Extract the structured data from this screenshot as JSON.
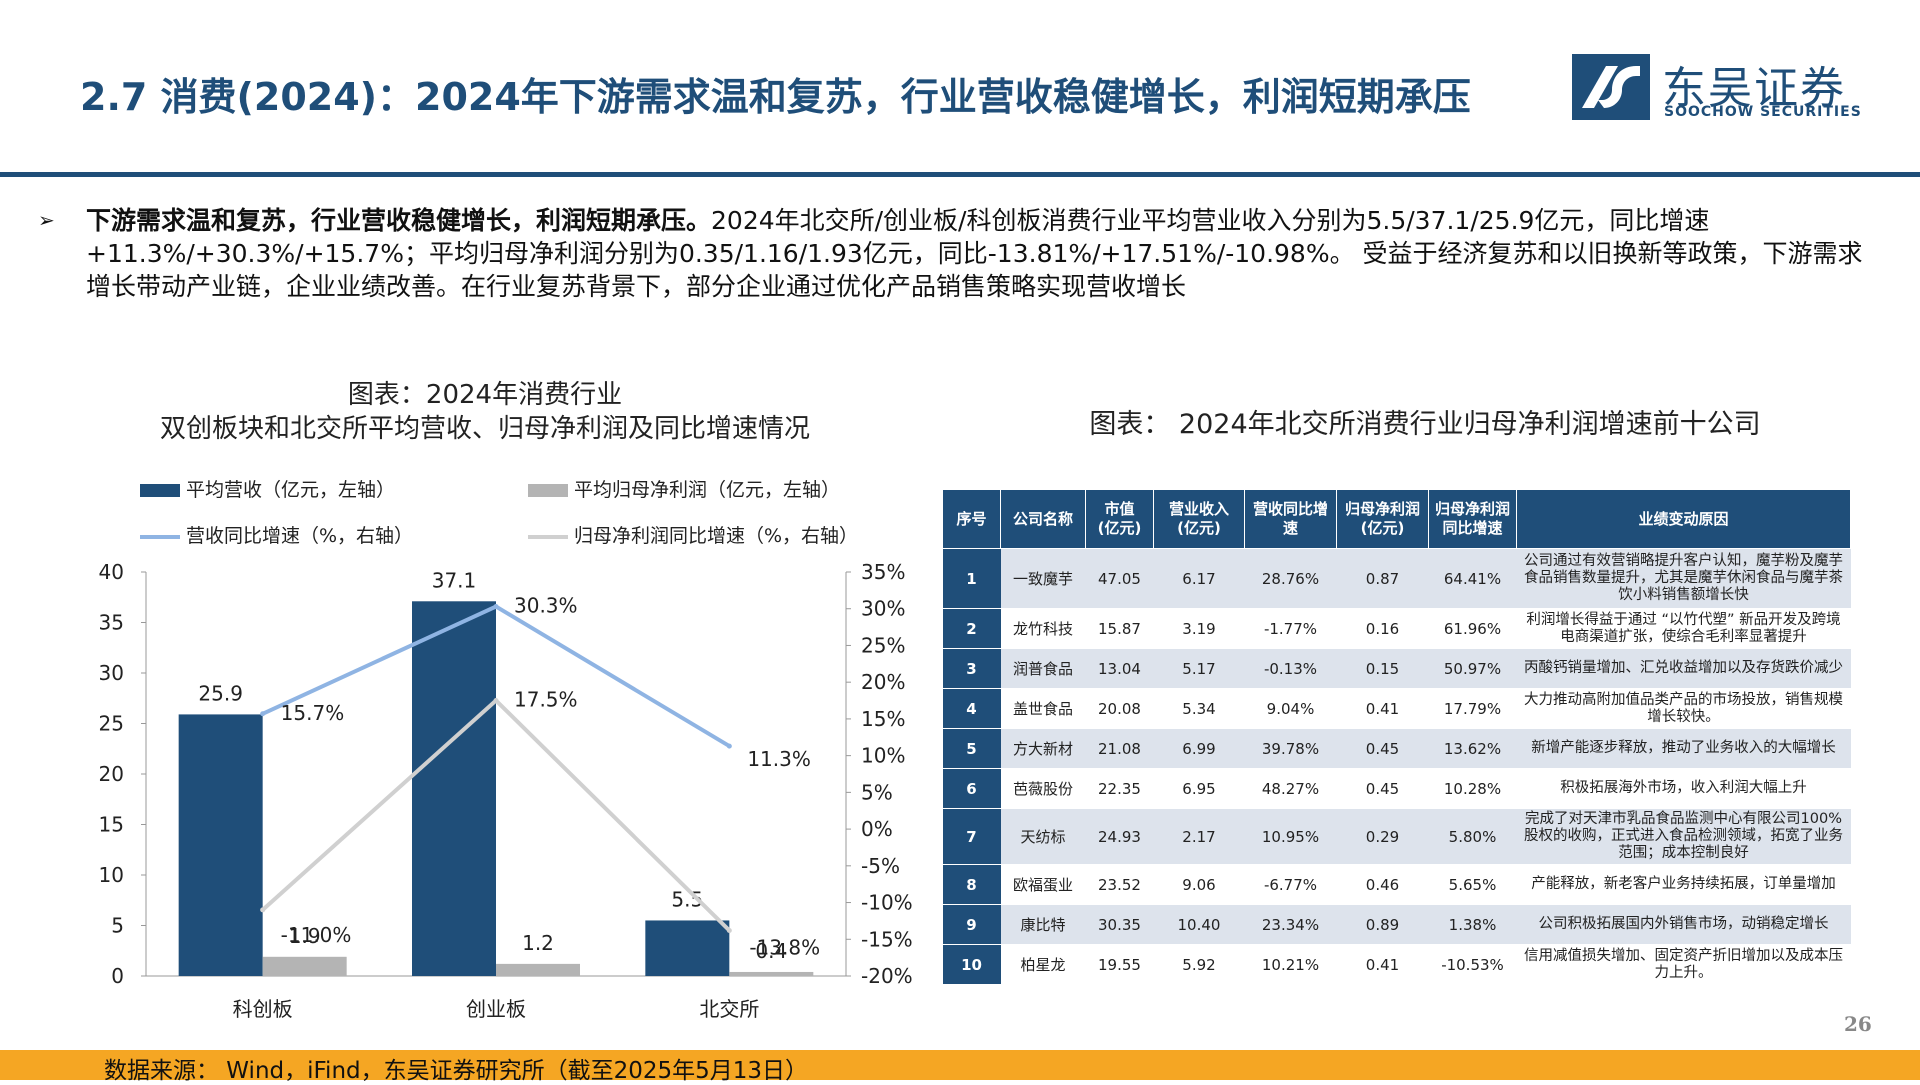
{
  "header": {
    "title": "2.7 消费(2024)：2024年下游需求温和复苏，行业营收稳健增长，利润短期承压",
    "logo_cn": "东吴证券",
    "logo_en": "SOOCHOW SECURITIES"
  },
  "bullet": {
    "mark": "➢",
    "bold": "下游需求温和复苏，行业营收稳健增长，利润短期承压。",
    "text": "2024年北交所/创业板/科创板消费行业平均营业收入分别为5.5/37.1/25.9亿元，同比增速+11.3%/+30.3%/+15.7%；平均归母净利润分别为0.35/1.16/1.93亿元，同比-13.81%/+17.51%/-10.98%。 受益于经济复苏和以旧换新等政策，下游需求增长带动产业链，企业业绩改善。在行业复苏背景下，部分企业通过优化产品销售策略实现营收增长"
  },
  "chart_title_line1": "图表：2024年消费行业",
  "chart_title_line2": "双创板块和北交所平均营收、归母净利润及同比增速情况",
  "table_title": "图表：   2024年北交所消费行业归母净利润增速前十公司",
  "colors": {
    "navy": "#1f4e79",
    "grey_bar": "#b4b4b4",
    "light_blue_line": "#8fb4e3",
    "grey_line": "#d0d0d0",
    "orange": "#f5a623"
  },
  "chart_data": {
    "type": "bar",
    "categories": [
      "科创板",
      "创业板",
      "北交所"
    ],
    "series": [
      {
        "name": "平均营收（亿元，左轴）",
        "kind": "bar",
        "axis": "left",
        "values": [
          25.9,
          37.1,
          5.5
        ],
        "labels": [
          "25.9",
          "37.1",
          "5.5"
        ]
      },
      {
        "name": "平均归母净利润（亿元，左轴）",
        "kind": "bar",
        "axis": "left",
        "values": [
          1.9,
          1.2,
          0.4
        ],
        "labels": [
          "1.9",
          "1.2",
          "0.4"
        ]
      },
      {
        "name": "营收同比增速（%，右轴）",
        "kind": "line",
        "axis": "right",
        "values": [
          15.7,
          30.3,
          11.3
        ],
        "labels": [
          "15.7%",
          "30.3%",
          "11.3%"
        ]
      },
      {
        "name": "归母净利润同比增速（%，右轴）",
        "kind": "line",
        "axis": "right",
        "values": [
          -11.0,
          17.5,
          -13.8
        ],
        "labels": [
          "-11.0%",
          "17.5%",
          "-13.8%"
        ]
      }
    ],
    "ylim_left": [
      0,
      40
    ],
    "ylim_right": [
      -20,
      35
    ],
    "left_ticks": [
      "0",
      "5",
      "10",
      "15",
      "20",
      "25",
      "30",
      "35",
      "40"
    ],
    "right_ticks": [
      "-20%",
      "-15%",
      "-10%",
      "-5%",
      "0%",
      "5%",
      "10%",
      "15%",
      "20%",
      "25%",
      "30%",
      "35%"
    ],
    "grid": false,
    "legend_position": "top"
  },
  "table": {
    "headers": [
      "序号",
      "公司名称",
      "市值\n(亿元)",
      "营业收入\n(亿元)",
      "营收同比增\n速",
      "归母净利润\n(亿元)",
      "归母净利润\n同比增速",
      "业绩变动原因"
    ],
    "rows": [
      [
        "1",
        "一致魔芋",
        "47.05",
        "6.17",
        "28.76%",
        "0.87",
        "64.41%",
        "公司通过有效营销略提升客户认知，魔芋粉及魔芋食品销售数量提升，尤其是魔芋休闲食品与魔芋茶饮小料销售额增长快"
      ],
      [
        "2",
        "龙竹科技",
        "15.87",
        "3.19",
        "-1.77%",
        "0.16",
        "61.96%",
        "利润增长得益于通过 “以竹代塑” 新品开发及跨境电商渠道扩张，使综合毛利率显著提升"
      ],
      [
        "3",
        "润普食品",
        "13.04",
        "5.17",
        "-0.13%",
        "0.15",
        "50.97%",
        "丙酸钙销量增加、汇兑收益增加以及存货跌价减少"
      ],
      [
        "4",
        "盖世食品",
        "20.08",
        "5.34",
        "9.04%",
        "0.41",
        "17.79%",
        "大力推动高附加值品类产品的市场投放，销售规模增长较快。"
      ],
      [
        "5",
        "方大新材",
        "21.08",
        "6.99",
        "39.78%",
        "0.45",
        "13.62%",
        "新增产能逐步释放，推动了业务收入的大幅增长"
      ],
      [
        "6",
        "芭薇股份",
        "22.35",
        "6.95",
        "48.27%",
        "0.45",
        "10.28%",
        "积极拓展海外市场，收入利润大幅上升"
      ],
      [
        "7",
        "天纺标",
        "24.93",
        "2.17",
        "10.95%",
        "0.29",
        "5.80%",
        "完成了对天津市乳品食品监测中心有限公司100%股权的收购，正式进入食品检测领域，拓宽了业务范围；成本控制良好"
      ],
      [
        "8",
        "欧福蛋业",
        "23.52",
        "9.06",
        "-6.77%",
        "0.46",
        "5.65%",
        "产能释放，新老客户业务持续拓展，订单量增加"
      ],
      [
        "9",
        "康比特",
        "30.35",
        "10.40",
        "23.34%",
        "0.89",
        "1.38%",
        "公司积极拓展国内外销售市场，动销稳定增长"
      ],
      [
        "10",
        "柏星龙",
        "19.55",
        "5.92",
        "10.21%",
        "0.41",
        "-10.53%",
        "信用减值损失增加、固定资产折旧增加以及成本压力上升。"
      ]
    ]
  },
  "page_number": "26",
  "source": "数据来源：  Wind，iFind，东吴证券研究所（截至2025年5月13日）"
}
